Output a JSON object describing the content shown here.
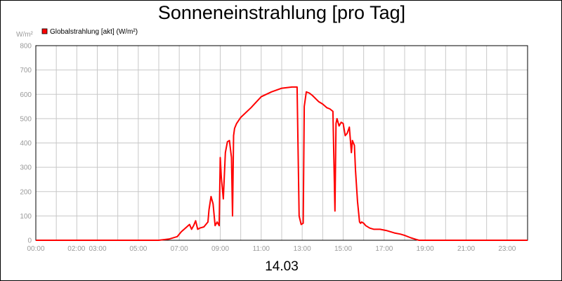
{
  "chart_data": {
    "type": "line",
    "title": "Sonneneinstrahlung [pro Tag]",
    "footer": "14.03",
    "ylabel": "W/m²",
    "xlabel": "",
    "xlim": [
      0,
      24
    ],
    "ylim": [
      0,
      800
    ],
    "y_ticks": [
      0,
      100,
      200,
      300,
      400,
      500,
      600,
      700,
      800
    ],
    "y_tick_labels": [
      "0",
      "100",
      "200",
      "300",
      "400",
      "500",
      "600",
      "700",
      "800"
    ],
    "x_ticks": [
      0,
      2,
      3,
      5,
      7,
      9,
      11,
      13,
      15,
      17,
      19,
      21,
      23
    ],
    "x_tick_labels": [
      "00:00",
      "02:00",
      "03:00",
      "05:00",
      "07:00",
      "09:00",
      "11:00",
      "13:00",
      "15:00",
      "17:00",
      "19:00",
      "21:00",
      "23:00"
    ],
    "grid": true,
    "legend_position": "top-left",
    "series": [
      {
        "name": "Globalstrahlung [akt] (W/m²)",
        "color": "#ff0000",
        "x": [
          0,
          6.0,
          6.5,
          6.9,
          7.1,
          7.3,
          7.5,
          7.6,
          7.7,
          7.8,
          7.9,
          8.0,
          8.2,
          8.4,
          8.45,
          8.55,
          8.65,
          8.75,
          8.85,
          8.95,
          9.0,
          9.05,
          9.15,
          9.25,
          9.35,
          9.45,
          9.55,
          9.6,
          9.65,
          9.7,
          9.8,
          10.0,
          10.5,
          11.0,
          11.5,
          12.0,
          12.5,
          12.6,
          12.7,
          12.75,
          12.85,
          12.95,
          13.05,
          13.1,
          13.2,
          13.35,
          13.5,
          13.8,
          14.0,
          14.2,
          14.35,
          14.5,
          14.6,
          14.65,
          14.7,
          14.8,
          14.9,
          15.0,
          15.1,
          15.2,
          15.3,
          15.4,
          15.45,
          15.55,
          15.6,
          15.7,
          15.8,
          15.85,
          15.9,
          16.0,
          16.1,
          16.3,
          16.5,
          16.8,
          17.1,
          17.5,
          17.8,
          18.0,
          18.3,
          18.5,
          18.7,
          19.0,
          24.0
        ],
        "values": [
          0,
          0,
          5,
          15,
          35,
          50,
          65,
          45,
          60,
          80,
          45,
          50,
          55,
          75,
          125,
          180,
          150,
          60,
          75,
          60,
          340,
          260,
          170,
          360,
          405,
          410,
          340,
          100,
          430,
          460,
          480,
          505,
          545,
          590,
          610,
          625,
          630,
          630,
          630,
          630,
          100,
          65,
          70,
          550,
          610,
          605,
          595,
          570,
          560,
          545,
          540,
          530,
          120,
          480,
          500,
          470,
          485,
          480,
          430,
          440,
          465,
          360,
          410,
          390,
          290,
          160,
          75,
          70,
          75,
          70,
          60,
          50,
          45,
          45,
          40,
          30,
          25,
          20,
          10,
          5,
          0,
          0,
          0
        ]
      }
    ]
  }
}
